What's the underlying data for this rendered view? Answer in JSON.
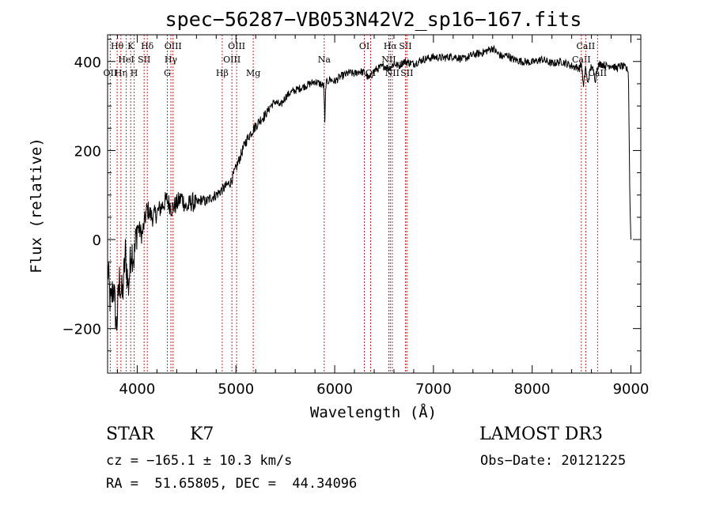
{
  "chart_data": {
    "type": "line",
    "title": "spec−56287−VB053N42V2_sp16−167.fits",
    "xlabel": "Wavelength (Å)",
    "ylabel": "Flux (relative)",
    "xlim": [
      3700,
      9100
    ],
    "ylim": [
      -300,
      460
    ],
    "xticks": [
      4000,
      5000,
      6000,
      7000,
      8000,
      9000
    ],
    "xtick_labels": [
      "4000",
      "5000",
      "6000",
      "7000",
      "8000",
      "9000"
    ],
    "yticks": [
      -200,
      0,
      200,
      400
    ],
    "ytick_labels": [
      "−200",
      "0",
      "200",
      "400"
    ],
    "grid": false,
    "series": [
      {
        "name": "flux",
        "x": [
          3700,
          3730,
          3760,
          3790,
          3820,
          3850,
          3880,
          3910,
          3940,
          3970,
          4000,
          4050,
          4100,
          4150,
          4200,
          4250,
          4300,
          4350,
          4400,
          4450,
          4500,
          4550,
          4600,
          4650,
          4700,
          4750,
          4800,
          4850,
          4900,
          4950,
          5000,
          5050,
          5100,
          5150,
          5200,
          5250,
          5300,
          5350,
          5400,
          5450,
          5500,
          5550,
          5600,
          5650,
          5700,
          5750,
          5800,
          5850,
          5890,
          5900,
          5910,
          5950,
          6000,
          6050,
          6100,
          6150,
          6200,
          6250,
          6300,
          6350,
          6400,
          6450,
          6500,
          6550,
          6600,
          6650,
          6700,
          6800,
          6900,
          7000,
          7100,
          7200,
          7300,
          7400,
          7500,
          7550,
          7600,
          7650,
          7700,
          7750,
          7800,
          7900,
          8000,
          8100,
          8200,
          8300,
          8400,
          8480,
          8500,
          8520,
          8540,
          8560,
          8600,
          8640,
          8660,
          8700,
          8750,
          8800,
          8850,
          8900,
          8950,
          8975,
          8990,
          9000
        ],
        "y": [
          -60,
          -150,
          -100,
          -200,
          -90,
          -130,
          -30,
          -110,
          -20,
          -40,
          30,
          10,
          70,
          50,
          60,
          75,
          90,
          70,
          80,
          95,
          70,
          85,
          80,
          90,
          85,
          95,
          100,
          110,
          120,
          130,
          160,
          190,
          220,
          240,
          255,
          270,
          280,
          300,
          310,
          300,
          320,
          330,
          335,
          340,
          345,
          350,
          355,
          350,
          345,
          260,
          350,
          360,
          355,
          365,
          370,
          375,
          372,
          378,
          375,
          360,
          380,
          385,
          390,
          385,
          395,
          390,
          400,
          395,
          405,
          410,
          408,
          412,
          405,
          415,
          420,
          425,
          430,
          418,
          410,
          415,
          405,
          400,
          398,
          405,
          395,
          400,
          390,
          385,
          395,
          340,
          390,
          350,
          392,
          360,
          390,
          395,
          390,
          392,
          385,
          390,
          385,
          375,
          80,
          0
        ]
      }
    ],
    "emission_lines": [
      {
        "label": "OII",
        "x": 3727,
        "row": 3
      },
      {
        "label": "Hθ",
        "x": 3797,
        "row": 1
      },
      {
        "label": "Hη",
        "x": 3835,
        "row": 3
      },
      {
        "label": "HeI",
        "x": 3889,
        "row": 2
      },
      {
        "label": "K",
        "x": 3934,
        "row": 1
      },
      {
        "label": "H",
        "x": 3969,
        "row": 3
      },
      {
        "label": "SII",
        "x": 4070,
        "row": 2
      },
      {
        "label": "Hδ",
        "x": 4102,
        "row": 1
      },
      {
        "label": "G",
        "x": 4305,
        "row": 3
      },
      {
        "label": "Hγ",
        "x": 4341,
        "row": 2
      },
      {
        "label": "OIII",
        "x": 4363,
        "row": 1
      },
      {
        "label": "Hβ",
        "x": 4861,
        "row": 3
      },
      {
        "label": "OIII",
        "x": 4959,
        "row": 2
      },
      {
        "label": "OIII",
        "x": 5007,
        "row": 1
      },
      {
        "label": "Mg",
        "x": 5175,
        "row": 3
      },
      {
        "label": "Na",
        "x": 5894,
        "row": 2
      },
      {
        "label": "OI",
        "x": 6300,
        "row": 1
      },
      {
        "label": "OI",
        "x": 6364,
        "row": 3
      },
      {
        "label": "NII",
        "x": 6548,
        "row": 2
      },
      {
        "label": "Hα",
        "x": 6563,
        "row": 1
      },
      {
        "label": "NII",
        "x": 6583,
        "row": 3
      },
      {
        "label": "SII",
        "x": 6716,
        "row": 1
      },
      {
        "label": "SII",
        "x": 6731,
        "row": 3
      },
      {
        "label": "CaII",
        "x": 8498,
        "row": 2
      },
      {
        "label": "CaII",
        "x": 8542,
        "row": 1
      },
      {
        "label": "CaII",
        "x": 8662,
        "row": 3
      }
    ]
  },
  "info": {
    "class_label": "STAR",
    "subclass_label": "K7",
    "survey": "LAMOST DR3",
    "cz": "cz = −165.1 ± 10.3 km/s",
    "obs_date": "Obs−Date: 20121225",
    "coords": "RA =  51.65805, DEC =  44.34096"
  },
  "colors": {
    "line": "#000000",
    "marker": "#cc2222",
    "text": "#000000"
  }
}
